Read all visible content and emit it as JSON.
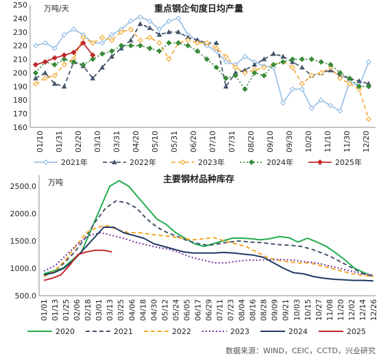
{
  "source_text": "数据来源：WIND，CEIC，CCTD，兴业研究",
  "chart_data": [
    {
      "type": "line",
      "title": "重点钢企旬度日均产量",
      "unit_label": "万吨/天",
      "ylim": [
        160,
        250
      ],
      "y_ticks": [
        "160",
        "170",
        "180",
        "190",
        "200",
        "210",
        "220",
        "230",
        "240",
        "250"
      ],
      "x_tick_labels": [
        "01/10",
        "01/31",
        "02/20",
        "03/10",
        "03/31",
        "04/20",
        "05/10",
        "05/31",
        "06/20",
        "07/10",
        "07/31",
        "08/20",
        "09/10",
        "09/30",
        "10/20",
        "11/10",
        "11/30",
        "12/20"
      ],
      "grid": false,
      "legend_position": "bottom",
      "series": [
        {
          "name": "2021年",
          "color": "#9dc3e6",
          "style": "solid",
          "marker": "diamond-open",
          "values": [
            220,
            222,
            218,
            228,
            232,
            228,
            222,
            222,
            228,
            232,
            238,
            241,
            238,
            232,
            238,
            240,
            228,
            224,
            220,
            216,
            208,
            206,
            212,
            208,
            205,
            204,
            178,
            188,
            188,
            174,
            180,
            176,
            172,
            194,
            190,
            208
          ]
        },
        {
          "name": "2022年",
          "color": "#44546a",
          "style": "dashed",
          "marker": "triangle",
          "values": [
            196,
            200,
            192,
            190,
            208,
            205,
            196,
            204,
            212,
            218,
            224,
            236,
            233,
            228,
            230,
            230,
            226,
            224,
            222,
            222,
            190,
            200,
            202,
            206,
            210,
            214,
            212,
            208,
            204,
            198,
            200,
            202,
            198,
            196,
            194,
            192
          ]
        },
        {
          "name": "2023年",
          "color": "#f5b041",
          "style": "dashed",
          "marker": "diamond-open",
          "values": [
            192,
            196,
            198,
            206,
            210,
            226,
            222,
            226,
            224,
            230,
            232,
            224,
            226,
            222,
            210,
            222,
            224,
            222,
            222,
            218,
            212,
            204,
            200,
            202,
            204,
            206,
            208,
            204,
            192,
            198,
            200,
            204,
            196,
            192,
            188,
            166
          ]
        },
        {
          "name": "2024年",
          "color": "#3a8b3a",
          "style": "dotted",
          "marker": "diamond",
          "values": [
            200,
            208,
            206,
            210,
            208,
            206,
            210,
            214,
            216,
            220,
            220,
            220,
            218,
            216,
            222,
            222,
            220,
            216,
            210,
            204,
            196,
            198,
            188,
            200,
            198,
            206,
            208,
            210,
            210,
            210,
            208,
            206,
            200,
            196,
            190,
            190
          ]
        },
        {
          "name": "2025年",
          "color": "#c0282d",
          "style": "solid",
          "marker": "diamond",
          "values": [
            206,
            208,
            211,
            213,
            215,
            222,
            213
          ]
        }
      ]
    },
    {
      "type": "line",
      "title": "主要钢材品种库存",
      "unit_label": "万吨",
      "ylim": [
        500,
        2700
      ],
      "y_ticks": [
        "500.0",
        "1000.0",
        "1500.0",
        "2000.0",
        "2500.0"
      ],
      "x_tick_labels": [
        "01/01",
        "01/13",
        "01/25",
        "02/06",
        "02/18",
        "03/01",
        "03/13",
        "03/25",
        "04/06",
        "04/18",
        "04/30",
        "05/12",
        "05/24",
        "06/05",
        "06/17",
        "06/29",
        "07/11",
        "07/23",
        "08/04",
        "08/16",
        "08/28",
        "09/09",
        "09/21",
        "10/03",
        "10/15",
        "10/27",
        "11/08",
        "11/20",
        "12/02",
        "12/14",
        "12/26"
      ],
      "grid": false,
      "legend_position": "bottom",
      "series": [
        {
          "name": "2020",
          "color": "#1fab4d",
          "style": "solid",
          "values": [
            900,
            950,
            1000,
            1150,
            1300,
            1700,
            2100,
            2500,
            2600,
            2500,
            2300,
            2100,
            1900,
            1800,
            1650,
            1550,
            1450,
            1400,
            1450,
            1500,
            1550,
            1550,
            1540,
            1520,
            1540,
            1580,
            1560,
            1480,
            1550,
            1480,
            1400,
            1280,
            1150,
            1000,
            920,
            850
          ]
        },
        {
          "name": "2021",
          "color": "#44546a",
          "style": "dashed",
          "values": [
            850,
            950,
            1100,
            1300,
            1550,
            1850,
            2100,
            2230,
            2200,
            2100,
            1900,
            1750,
            1650,
            1580,
            1500,
            1450,
            1420,
            1450,
            1480,
            1500,
            1480,
            1470,
            1450,
            1430,
            1420,
            1400,
            1350,
            1280,
            1200,
            1100,
            1000,
            900,
            850
          ]
        },
        {
          "name": "2022",
          "color": "#f5a623",
          "style": "dashed",
          "values": [
            850,
            950,
            1150,
            1400,
            1650,
            1750,
            1780,
            1700,
            1650,
            1650,
            1620,
            1600,
            1580,
            1550,
            1520,
            1540,
            1560,
            1500,
            1450,
            1400,
            1300,
            1200,
            1150,
            1120,
            1100,
            1100,
            1050,
            1000,
            950,
            900,
            870,
            850
          ]
        },
        {
          "name": "2023",
          "color": "#7030a0",
          "style": "dotted",
          "values": [
            950,
            1050,
            1250,
            1450,
            1600,
            1650,
            1600,
            1550,
            1480,
            1430,
            1380,
            1350,
            1280,
            1200,
            1150,
            1100,
            1100,
            1130,
            1150,
            1150,
            1160,
            1160,
            1150,
            1120,
            1100,
            1050,
            1000,
            950,
            900,
            880
          ]
        },
        {
          "name": "2024",
          "color": "#1f3864",
          "style": "solid",
          "values": [
            880,
            920,
            1000,
            1150,
            1350,
            1550,
            1750,
            1750,
            1650,
            1600,
            1550,
            1450,
            1400,
            1350,
            1300,
            1280,
            1280,
            1280,
            1290,
            1280,
            1260,
            1240,
            1200,
            1100,
            1000,
            920,
            900,
            850,
            820,
            800,
            790,
            780,
            780,
            770
          ]
        },
        {
          "name": "2025",
          "color": "#c0282d",
          "style": "solid",
          "values": [
            780,
            820,
            880,
            1050,
            1250,
            1300,
            1330,
            1330,
            1300
          ]
        }
      ]
    }
  ]
}
